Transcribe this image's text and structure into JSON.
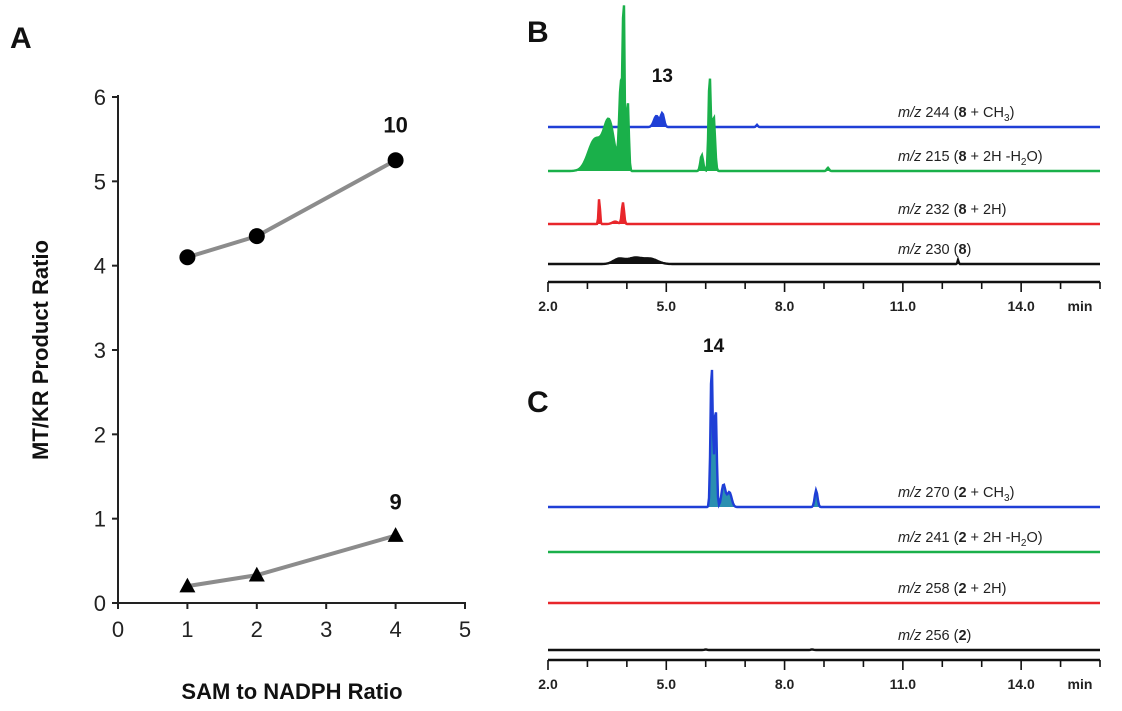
{
  "chart_data": [
    {
      "panel": "A",
      "type": "line",
      "xlabel": "SAM to NADPH Ratio",
      "ylabel": "MT/KR Product Ratio",
      "xlim": [
        0,
        5
      ],
      "ylim": [
        0,
        6
      ],
      "xticks": [
        "0",
        "1",
        "2",
        "3",
        "4",
        "5"
      ],
      "yticks": [
        "0",
        "1",
        "2",
        "3",
        "4",
        "5",
        "6"
      ],
      "grid": false,
      "series": [
        {
          "name": "10",
          "marker": "circle",
          "color": "#000000",
          "line_color": "#8c8c8c",
          "x": [
            1,
            2,
            4
          ],
          "y": [
            4.1,
            4.35,
            5.25
          ]
        },
        {
          "name": "9",
          "marker": "triangle",
          "color": "#000000",
          "line_color": "#8c8c8c",
          "x": [
            1,
            2,
            4
          ],
          "y": [
            0.2,
            0.33,
            0.8
          ]
        }
      ]
    },
    {
      "panel": "B",
      "type": "line",
      "xlabel": "min",
      "xlim": [
        2.0,
        16.0
      ],
      "xticks": [
        "2.0",
        "5.0",
        "8.0",
        "11.0",
        "14.0"
      ],
      "peak_label": {
        "text": "13",
        "x": 4.9
      },
      "series": [
        {
          "label_parts": [
            "m/z",
            " 244 (",
            "8",
            " + CH",
            "3",
            ")"
          ],
          "color": "#1f3fd6",
          "fill": "#1f3fd6",
          "peaks": [
            [
              4.75,
              0.1,
              0.09
            ],
            [
              4.9,
              0.12,
              0.06
            ],
            [
              7.3,
              0.02,
              0.03
            ]
          ]
        },
        {
          "label_parts": [
            "m/z",
            " 215 (",
            "8",
            " + 2H -H",
            "2",
            "O)"
          ],
          "color": "#1ab04a",
          "fill": "#1ab04a",
          "peaks": [
            [
              3.2,
              0.2,
              0.25
            ],
            [
              3.55,
              0.3,
              0.18
            ],
            [
              3.85,
              0.55,
              0.06
            ],
            [
              3.92,
              1.0,
              0.03
            ],
            [
              4.02,
              0.45,
              0.04
            ],
            [
              5.9,
              0.1,
              0.05
            ],
            [
              6.1,
              0.6,
              0.04
            ],
            [
              6.2,
              0.35,
              0.05
            ],
            [
              9.1,
              0.02,
              0.04
            ]
          ]
        },
        {
          "label_parts": [
            "m/z",
            " 232 (",
            "8",
            " + 2H)"
          ],
          "color": "#e8262b",
          "fill": "#e8262b",
          "peaks": [
            [
              3.3,
              0.22,
              0.025
            ],
            [
              3.9,
              0.18,
              0.04
            ],
            [
              3.7,
              0.02,
              0.1
            ]
          ]
        },
        {
          "label_parts": [
            "m/z",
            " 230 (",
            "8",
            ")"
          ],
          "color": "#111111",
          "fill": "#111111",
          "peaks": [
            [
              3.8,
              0.05,
              0.2
            ],
            [
              4.2,
              0.06,
              0.25
            ],
            [
              4.6,
              0.05,
              0.25
            ],
            [
              12.4,
              0.04,
              0.02
            ]
          ]
        }
      ]
    },
    {
      "panel": "C",
      "type": "line",
      "xlabel": "min",
      "xlim": [
        2.0,
        16.0
      ],
      "xticks": [
        "2.0",
        "5.0",
        "8.0",
        "11.0",
        "14.0"
      ],
      "peak_label": {
        "text": "14",
        "x": 6.2
      },
      "series": [
        {
          "label_parts": [
            "m/z",
            " 270 (",
            "2",
            " + CH",
            "3",
            ")"
          ],
          "color": "#1f3fd6",
          "fill": "#2a8fb0",
          "peaks": [
            [
              6.15,
              0.78,
              0.04
            ],
            [
              6.25,
              0.55,
              0.04
            ],
            [
              6.45,
              0.12,
              0.07
            ],
            [
              6.6,
              0.08,
              0.08
            ],
            [
              8.8,
              0.09,
              0.05
            ]
          ]
        },
        {
          "label_parts": [
            "m/z",
            " 241 (",
            "2",
            " + 2H -H",
            "2",
            "O)"
          ],
          "color": "#1ab04a",
          "fill": "#1ab04a",
          "peaks": []
        },
        {
          "label_parts": [
            "m/z",
            " 258 (",
            "2",
            " + 2H)"
          ],
          "color": "#e8262b",
          "fill": "#e8262b",
          "peaks": []
        },
        {
          "label_parts": [
            "m/z",
            " 256 (",
            "2",
            ")"
          ],
          "color": "#111111",
          "fill": "#111111",
          "peaks": [
            [
              6.0,
              0.01,
              0.05
            ],
            [
              8.7,
              0.01,
              0.05
            ]
          ]
        }
      ]
    }
  ]
}
